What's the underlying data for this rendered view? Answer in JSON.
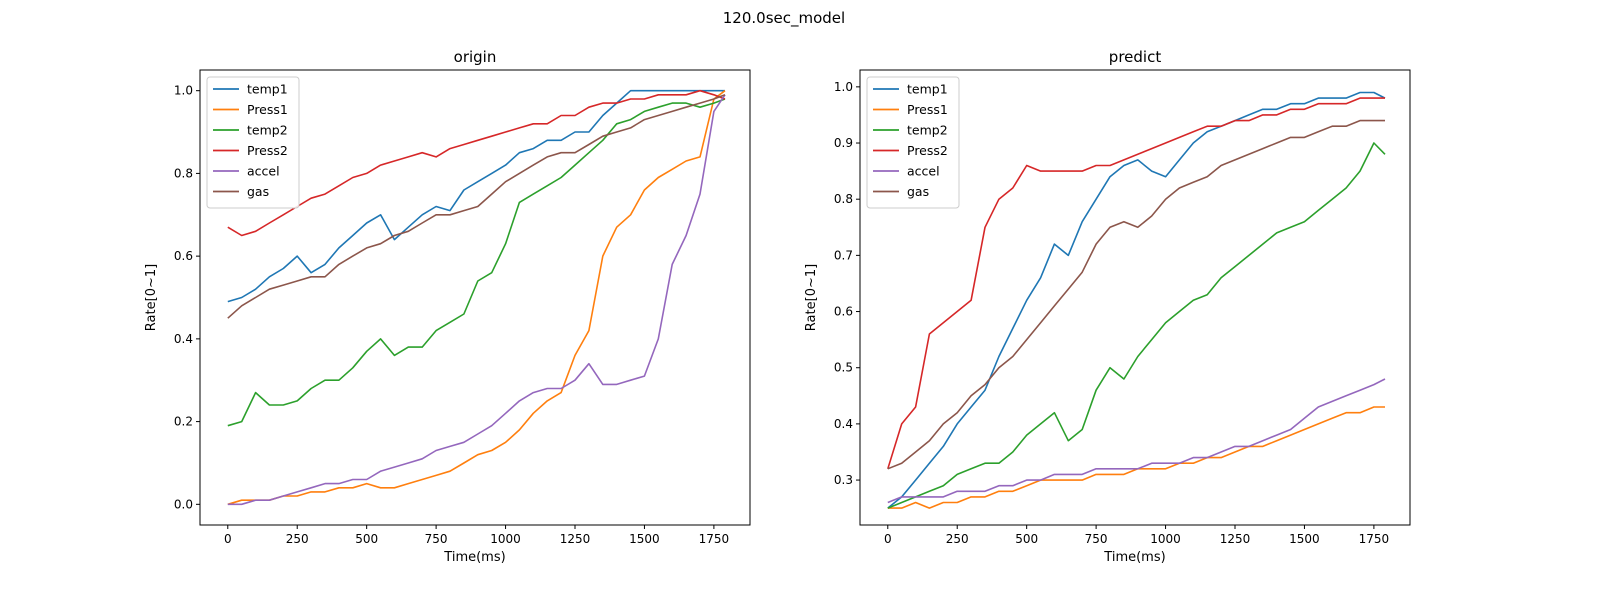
{
  "figure": {
    "suptitle": "120.0sec_model"
  },
  "colors": {
    "temp1": "#1f77b4",
    "Press1": "#ff7f0e",
    "temp2": "#2ca02c",
    "Press2": "#d62728",
    "accel": "#9467bd",
    "gas": "#8c564b"
  },
  "chart_data": [
    {
      "type": "line",
      "title": "origin",
      "xlabel": "Time(ms)",
      "ylabel": "Rate[0~1]",
      "xlim": [
        -100,
        1880
      ],
      "ylim": [
        -0.05,
        1.05
      ],
      "xticks": [
        0,
        250,
        500,
        750,
        1000,
        1250,
        1500,
        1750
      ],
      "yticks": [
        0.0,
        0.2,
        0.4,
        0.6,
        0.8,
        1.0
      ],
      "ytick_decimals": 1,
      "legend": "upper-left",
      "series": [
        {
          "name": "temp1",
          "x": [
            0,
            50,
            100,
            150,
            200,
            250,
            300,
            350,
            400,
            450,
            500,
            550,
            600,
            650,
            700,
            750,
            800,
            850,
            900,
            950,
            1000,
            1050,
            1100,
            1150,
            1200,
            1250,
            1300,
            1350,
            1400,
            1450,
            1500,
            1550,
            1600,
            1650,
            1700,
            1750,
            1790
          ],
          "y": [
            0.49,
            0.5,
            0.52,
            0.55,
            0.57,
            0.6,
            0.56,
            0.58,
            0.62,
            0.65,
            0.68,
            0.7,
            0.64,
            0.67,
            0.7,
            0.72,
            0.71,
            0.76,
            0.78,
            0.8,
            0.82,
            0.85,
            0.86,
            0.88,
            0.88,
            0.9,
            0.9,
            0.94,
            0.97,
            1.0,
            1.0,
            1.0,
            1.0,
            1.0,
            1.0,
            1.0,
            1.0
          ]
        },
        {
          "name": "Press1",
          "x": [
            0,
            50,
            100,
            150,
            200,
            250,
            300,
            350,
            400,
            450,
            500,
            550,
            600,
            650,
            700,
            750,
            800,
            850,
            900,
            950,
            1000,
            1050,
            1100,
            1150,
            1200,
            1250,
            1300,
            1350,
            1400,
            1450,
            1500,
            1550,
            1600,
            1650,
            1700,
            1750,
            1790
          ],
          "y": [
            0.0,
            0.01,
            0.01,
            0.01,
            0.02,
            0.02,
            0.03,
            0.03,
            0.04,
            0.04,
            0.05,
            0.04,
            0.04,
            0.05,
            0.06,
            0.07,
            0.08,
            0.1,
            0.12,
            0.13,
            0.15,
            0.18,
            0.22,
            0.25,
            0.27,
            0.36,
            0.42,
            0.6,
            0.67,
            0.7,
            0.76,
            0.79,
            0.81,
            0.83,
            0.84,
            0.98,
            1.0
          ]
        },
        {
          "name": "temp2",
          "x": [
            0,
            50,
            100,
            150,
            200,
            250,
            300,
            350,
            400,
            450,
            500,
            550,
            600,
            650,
            700,
            750,
            800,
            850,
            900,
            950,
            1000,
            1050,
            1100,
            1150,
            1200,
            1250,
            1300,
            1350,
            1400,
            1450,
            1500,
            1550,
            1600,
            1650,
            1700,
            1750,
            1790
          ],
          "y": [
            0.19,
            0.2,
            0.27,
            0.24,
            0.24,
            0.25,
            0.28,
            0.3,
            0.3,
            0.33,
            0.37,
            0.4,
            0.36,
            0.38,
            0.38,
            0.42,
            0.44,
            0.46,
            0.54,
            0.56,
            0.63,
            0.73,
            0.75,
            0.77,
            0.79,
            0.82,
            0.85,
            0.88,
            0.92,
            0.93,
            0.95,
            0.96,
            0.97,
            0.97,
            0.96,
            0.97,
            0.98
          ]
        },
        {
          "name": "Press2",
          "x": [
            0,
            50,
            100,
            150,
            200,
            250,
            300,
            350,
            400,
            450,
            500,
            550,
            600,
            650,
            700,
            750,
            800,
            850,
            900,
            950,
            1000,
            1050,
            1100,
            1150,
            1200,
            1250,
            1300,
            1350,
            1400,
            1450,
            1500,
            1550,
            1600,
            1650,
            1700,
            1750,
            1790
          ],
          "y": [
            0.67,
            0.65,
            0.66,
            0.68,
            0.7,
            0.72,
            0.74,
            0.75,
            0.77,
            0.79,
            0.8,
            0.82,
            0.83,
            0.84,
            0.85,
            0.84,
            0.86,
            0.87,
            0.88,
            0.89,
            0.9,
            0.91,
            0.92,
            0.92,
            0.94,
            0.94,
            0.96,
            0.97,
            0.97,
            0.98,
            0.98,
            0.99,
            0.99,
            0.99,
            1.0,
            0.99,
            0.98
          ]
        },
        {
          "name": "accel",
          "x": [
            0,
            50,
            100,
            150,
            200,
            250,
            300,
            350,
            400,
            450,
            500,
            550,
            600,
            650,
            700,
            750,
            800,
            850,
            900,
            950,
            1000,
            1050,
            1100,
            1150,
            1200,
            1250,
            1300,
            1350,
            1400,
            1450,
            1500,
            1550,
            1600,
            1650,
            1700,
            1750,
            1790
          ],
          "y": [
            0.0,
            0.0,
            0.01,
            0.01,
            0.02,
            0.03,
            0.04,
            0.05,
            0.05,
            0.06,
            0.06,
            0.08,
            0.09,
            0.1,
            0.11,
            0.13,
            0.14,
            0.15,
            0.17,
            0.19,
            0.22,
            0.25,
            0.27,
            0.28,
            0.28,
            0.3,
            0.34,
            0.29,
            0.29,
            0.3,
            0.31,
            0.4,
            0.58,
            0.65,
            0.75,
            0.95,
            0.99
          ]
        },
        {
          "name": "gas",
          "x": [
            0,
            50,
            100,
            150,
            200,
            250,
            300,
            350,
            400,
            450,
            500,
            550,
            600,
            650,
            700,
            750,
            800,
            850,
            900,
            950,
            1000,
            1050,
            1100,
            1150,
            1200,
            1250,
            1300,
            1350,
            1400,
            1450,
            1500,
            1550,
            1600,
            1650,
            1700,
            1750,
            1790
          ],
          "y": [
            0.45,
            0.48,
            0.5,
            0.52,
            0.53,
            0.54,
            0.55,
            0.55,
            0.58,
            0.6,
            0.62,
            0.63,
            0.65,
            0.66,
            0.68,
            0.7,
            0.7,
            0.71,
            0.72,
            0.75,
            0.78,
            0.8,
            0.82,
            0.84,
            0.85,
            0.85,
            0.87,
            0.89,
            0.9,
            0.91,
            0.93,
            0.94,
            0.95,
            0.96,
            0.97,
            0.98,
            0.99
          ]
        }
      ]
    },
    {
      "type": "line",
      "title": "predict",
      "xlabel": "Time(ms)",
      "ylabel": "Rate[0~1]",
      "xlim": [
        -100,
        1880
      ],
      "ylim": [
        0.22,
        1.03
      ],
      "xticks": [
        0,
        250,
        500,
        750,
        1000,
        1250,
        1500,
        1750
      ],
      "yticks": [
        0.3,
        0.4,
        0.5,
        0.6,
        0.7,
        0.8,
        0.9,
        1.0
      ],
      "ytick_decimals": 1,
      "legend": "upper-left",
      "series": [
        {
          "name": "temp1",
          "x": [
            0,
            50,
            100,
            150,
            200,
            250,
            300,
            350,
            400,
            450,
            500,
            550,
            600,
            650,
            700,
            750,
            800,
            850,
            900,
            950,
            1000,
            1050,
            1100,
            1150,
            1200,
            1250,
            1300,
            1350,
            1400,
            1450,
            1500,
            1550,
            1600,
            1650,
            1700,
            1750,
            1790
          ],
          "y": [
            0.25,
            0.27,
            0.3,
            0.33,
            0.36,
            0.4,
            0.43,
            0.46,
            0.52,
            0.57,
            0.62,
            0.66,
            0.72,
            0.7,
            0.76,
            0.8,
            0.84,
            0.86,
            0.87,
            0.85,
            0.84,
            0.87,
            0.9,
            0.92,
            0.93,
            0.94,
            0.95,
            0.96,
            0.96,
            0.97,
            0.97,
            0.98,
            0.98,
            0.98,
            0.99,
            0.99,
            0.98
          ]
        },
        {
          "name": "Press1",
          "x": [
            0,
            50,
            100,
            150,
            200,
            250,
            300,
            350,
            400,
            450,
            500,
            550,
            600,
            650,
            700,
            750,
            800,
            850,
            900,
            950,
            1000,
            1050,
            1100,
            1150,
            1200,
            1250,
            1300,
            1350,
            1400,
            1450,
            1500,
            1550,
            1600,
            1650,
            1700,
            1750,
            1790
          ],
          "y": [
            0.25,
            0.25,
            0.26,
            0.25,
            0.26,
            0.26,
            0.27,
            0.27,
            0.28,
            0.28,
            0.29,
            0.3,
            0.3,
            0.3,
            0.3,
            0.31,
            0.31,
            0.31,
            0.32,
            0.32,
            0.32,
            0.33,
            0.33,
            0.34,
            0.34,
            0.35,
            0.36,
            0.36,
            0.37,
            0.38,
            0.39,
            0.4,
            0.41,
            0.42,
            0.42,
            0.43,
            0.43
          ]
        },
        {
          "name": "temp2",
          "x": [
            0,
            50,
            100,
            150,
            200,
            250,
            300,
            350,
            400,
            450,
            500,
            550,
            600,
            650,
            700,
            750,
            800,
            850,
            900,
            950,
            1000,
            1050,
            1100,
            1150,
            1200,
            1250,
            1300,
            1350,
            1400,
            1450,
            1500,
            1550,
            1600,
            1650,
            1700,
            1750,
            1790
          ],
          "y": [
            0.25,
            0.26,
            0.27,
            0.28,
            0.29,
            0.31,
            0.32,
            0.33,
            0.33,
            0.35,
            0.38,
            0.4,
            0.42,
            0.37,
            0.39,
            0.46,
            0.5,
            0.48,
            0.52,
            0.55,
            0.58,
            0.6,
            0.62,
            0.63,
            0.66,
            0.68,
            0.7,
            0.72,
            0.74,
            0.75,
            0.76,
            0.78,
            0.8,
            0.82,
            0.85,
            0.9,
            0.88
          ]
        },
        {
          "name": "Press2",
          "x": [
            0,
            50,
            100,
            150,
            200,
            250,
            300,
            350,
            400,
            450,
            500,
            550,
            600,
            650,
            700,
            750,
            800,
            850,
            900,
            950,
            1000,
            1050,
            1100,
            1150,
            1200,
            1250,
            1300,
            1350,
            1400,
            1450,
            1500,
            1550,
            1600,
            1650,
            1700,
            1750,
            1790
          ],
          "y": [
            0.32,
            0.4,
            0.43,
            0.56,
            0.58,
            0.6,
            0.62,
            0.75,
            0.8,
            0.82,
            0.86,
            0.85,
            0.85,
            0.85,
            0.85,
            0.86,
            0.86,
            0.87,
            0.88,
            0.89,
            0.9,
            0.91,
            0.92,
            0.93,
            0.93,
            0.94,
            0.94,
            0.95,
            0.95,
            0.96,
            0.96,
            0.97,
            0.97,
            0.97,
            0.98,
            0.98,
            0.98
          ]
        },
        {
          "name": "accel",
          "x": [
            0,
            50,
            100,
            150,
            200,
            250,
            300,
            350,
            400,
            450,
            500,
            550,
            600,
            650,
            700,
            750,
            800,
            850,
            900,
            950,
            1000,
            1050,
            1100,
            1150,
            1200,
            1250,
            1300,
            1350,
            1400,
            1450,
            1500,
            1550,
            1600,
            1650,
            1700,
            1750,
            1790
          ],
          "y": [
            0.26,
            0.27,
            0.27,
            0.27,
            0.27,
            0.28,
            0.28,
            0.28,
            0.29,
            0.29,
            0.3,
            0.3,
            0.31,
            0.31,
            0.31,
            0.32,
            0.32,
            0.32,
            0.32,
            0.33,
            0.33,
            0.33,
            0.34,
            0.34,
            0.35,
            0.36,
            0.36,
            0.37,
            0.38,
            0.39,
            0.41,
            0.43,
            0.44,
            0.45,
            0.46,
            0.47,
            0.48
          ]
        },
        {
          "name": "gas",
          "x": [
            0,
            50,
            100,
            150,
            200,
            250,
            300,
            350,
            400,
            450,
            500,
            550,
            600,
            650,
            700,
            750,
            800,
            850,
            900,
            950,
            1000,
            1050,
            1100,
            1150,
            1200,
            1250,
            1300,
            1350,
            1400,
            1450,
            1500,
            1550,
            1600,
            1650,
            1700,
            1750,
            1790
          ],
          "y": [
            0.32,
            0.33,
            0.35,
            0.37,
            0.4,
            0.42,
            0.45,
            0.47,
            0.5,
            0.52,
            0.55,
            0.58,
            0.61,
            0.64,
            0.67,
            0.72,
            0.75,
            0.76,
            0.75,
            0.77,
            0.8,
            0.82,
            0.83,
            0.84,
            0.86,
            0.87,
            0.88,
            0.89,
            0.9,
            0.91,
            0.91,
            0.92,
            0.93,
            0.93,
            0.94,
            0.94,
            0.94
          ]
        }
      ]
    }
  ]
}
